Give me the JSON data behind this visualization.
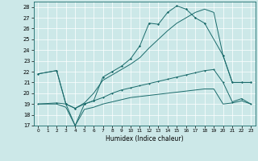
{
  "background_color": "#cce8e8",
  "line_color": "#1a6b6b",
  "grid_color": "#ffffff",
  "xlabel": "Humidex (Indice chaleur)",
  "xlim": [
    -0.5,
    23.5
  ],
  "ylim": [
    17,
    28.5
  ],
  "yticks": [
    17,
    18,
    19,
    20,
    21,
    22,
    23,
    24,
    25,
    26,
    27,
    28
  ],
  "xticks": [
    0,
    1,
    2,
    3,
    4,
    5,
    6,
    7,
    8,
    9,
    10,
    11,
    12,
    13,
    14,
    15,
    16,
    17,
    18,
    19,
    20,
    21,
    22,
    23
  ],
  "line1_x": [
    0,
    2,
    3,
    4,
    5,
    6,
    7,
    8,
    9,
    10,
    11,
    12,
    13,
    14,
    15,
    16,
    17,
    18,
    20,
    21,
    22,
    23
  ],
  "line1_y": [
    21.8,
    22.1,
    19.0,
    18.6,
    19.0,
    19.3,
    21.5,
    22.0,
    22.5,
    23.2,
    24.4,
    26.5,
    26.4,
    27.5,
    28.1,
    27.8,
    27.0,
    26.5,
    23.5,
    21.0,
    21.0,
    21.0
  ],
  "line2_x": [
    0,
    2,
    3,
    4,
    5,
    6,
    7,
    8,
    9,
    10,
    11,
    12,
    13,
    14,
    15,
    16,
    17,
    18,
    19,
    20,
    21,
    22,
    23
  ],
  "line2_y": [
    21.8,
    22.1,
    19.0,
    18.6,
    19.1,
    20.0,
    21.2,
    21.7,
    22.2,
    22.7,
    23.3,
    24.2,
    25.0,
    25.8,
    26.5,
    27.0,
    27.5,
    27.8,
    27.5,
    23.5,
    21.0,
    21.0,
    21.0
  ],
  "line3_x": [
    0,
    2,
    3,
    4,
    5,
    6,
    7,
    8,
    9,
    10,
    11,
    12,
    13,
    14,
    15,
    16,
    17,
    18,
    19,
    20,
    21,
    22,
    23
  ],
  "line3_y": [
    19.0,
    19.1,
    19.0,
    17.0,
    19.0,
    19.3,
    19.6,
    20.0,
    20.3,
    20.5,
    20.7,
    20.9,
    21.1,
    21.3,
    21.5,
    21.7,
    21.9,
    22.1,
    22.2,
    21.0,
    19.2,
    19.5,
    19.0
  ],
  "line4_x": [
    0,
    2,
    3,
    4,
    5,
    6,
    7,
    8,
    9,
    10,
    11,
    12,
    13,
    14,
    15,
    16,
    17,
    18,
    19,
    20,
    21,
    22,
    23
  ],
  "line4_y": [
    19.0,
    19.0,
    18.7,
    17.0,
    18.5,
    18.7,
    19.0,
    19.2,
    19.4,
    19.6,
    19.7,
    19.8,
    19.9,
    20.0,
    20.1,
    20.2,
    20.3,
    20.4,
    20.4,
    19.0,
    19.1,
    19.3,
    19.0
  ]
}
